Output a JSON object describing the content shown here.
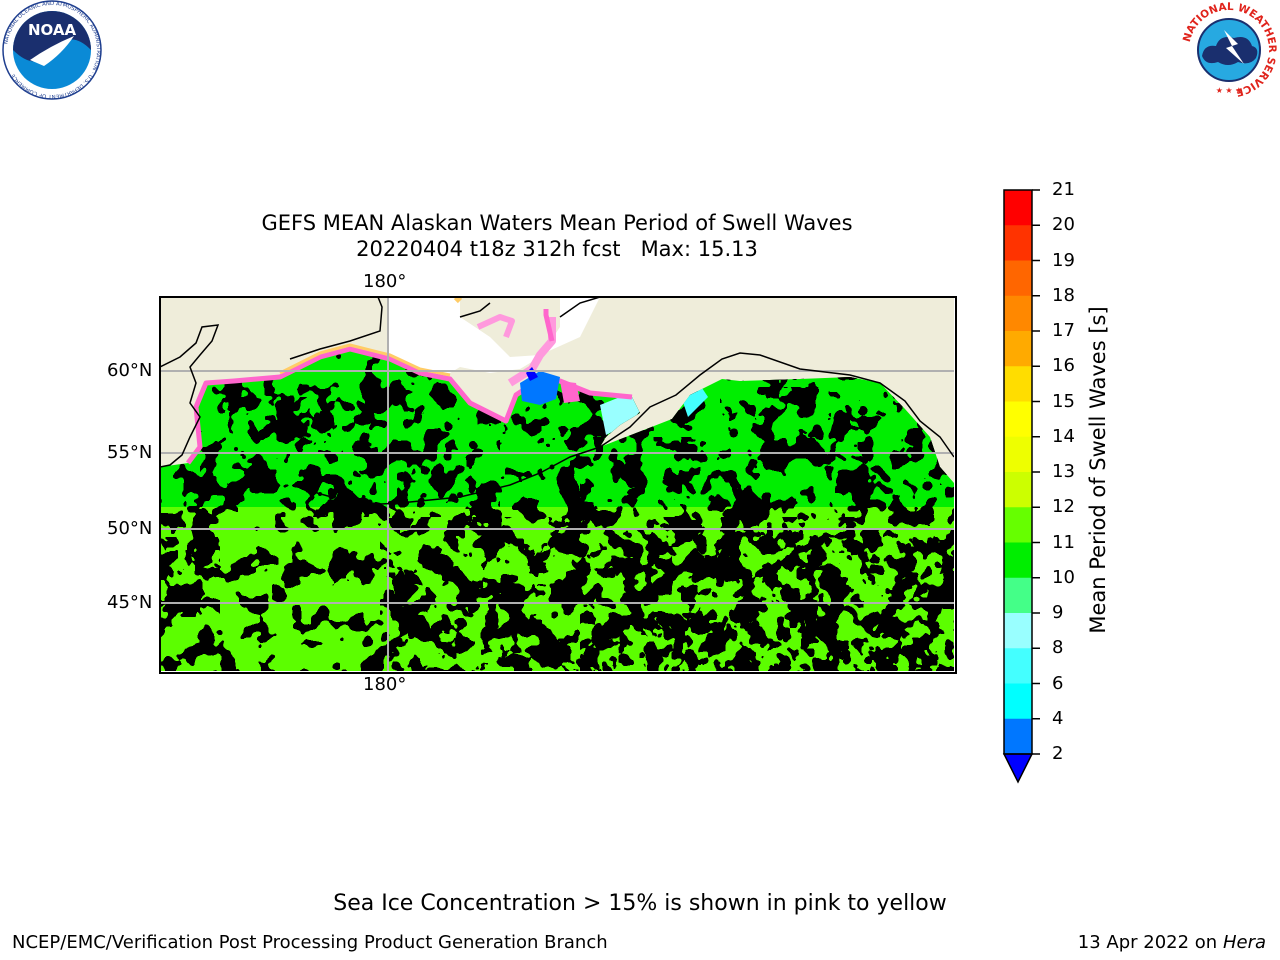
{
  "title": {
    "line1": "GEFS MEAN Alaskan Waters Mean Period of Swell Waves",
    "line2": "20220404 t18z 312h fcst   Max: 15.13"
  },
  "map": {
    "lat_labels": [
      "60°N",
      "55°N",
      "50°N",
      "45°N"
    ],
    "lon_label_top": "180°",
    "lon_label_bottom": "180°",
    "land_color": "#efedda",
    "ice_free_color": "#ffffff",
    "grid_color": "#b0b0b0",
    "features": {
      "sea_ice_colors": [
        "#ff66cc",
        "#ff99dd",
        "#ffcc66",
        "#ffff66"
      ],
      "swell_dominant_colors": [
        "#00ee00",
        "#66ff00",
        "#ccff00",
        "#eeff00",
        "#44ff88",
        "#99ffff"
      ]
    }
  },
  "colorbar": {
    "title": "Mean Period of Swell Waves [s]",
    "tick_labels": [
      "21",
      "20",
      "19",
      "18",
      "17",
      "16",
      "15",
      "14",
      "13",
      "12",
      "11",
      "10",
      "9",
      "8",
      "6",
      "4",
      "2"
    ],
    "bins": [
      {
        "lo": 20,
        "hi": 21,
        "color": "#ff0000"
      },
      {
        "lo": 19,
        "hi": 20,
        "color": "#ff3300"
      },
      {
        "lo": 18,
        "hi": 19,
        "color": "#ff6600"
      },
      {
        "lo": 17,
        "hi": 18,
        "color": "#ff8800"
      },
      {
        "lo": 16,
        "hi": 17,
        "color": "#ffaa00"
      },
      {
        "lo": 15,
        "hi": 16,
        "color": "#ffdd00"
      },
      {
        "lo": 14,
        "hi": 15,
        "color": "#ffff00"
      },
      {
        "lo": 13,
        "hi": 14,
        "color": "#eeff00"
      },
      {
        "lo": 12,
        "hi": 13,
        "color": "#ccff00"
      },
      {
        "lo": 11,
        "hi": 12,
        "color": "#66ff00"
      },
      {
        "lo": 10,
        "hi": 11,
        "color": "#00ee00"
      },
      {
        "lo": 9,
        "hi": 10,
        "color": "#44ff88"
      },
      {
        "lo": 8,
        "hi": 9,
        "color": "#99ffff"
      },
      {
        "lo": 6,
        "hi": 8,
        "color": "#44ffff"
      },
      {
        "lo": 4,
        "hi": 6,
        "color": "#00ffff"
      },
      {
        "lo": 2,
        "hi": 4,
        "color": "#0077ff"
      }
    ],
    "under_color": "#0000ff"
  },
  "note": "Sea Ice Concentration > 15% is shown in pink to yellow",
  "footer": {
    "left": "NCEP/EMC/Verification Post Processing Product Generation Branch",
    "date": "13 Apr 2022 on ",
    "host": "Hera"
  },
  "logos": {
    "noaa_text": "NOAA",
    "noaa_ring_text": "NATIONAL OCEANIC AND ATMOSPHERIC ADMINISTRATION · U.S. DEPARTMENT OF COMMERCE",
    "nws_ring_text": "NATIONAL WEATHER SERVICE"
  }
}
